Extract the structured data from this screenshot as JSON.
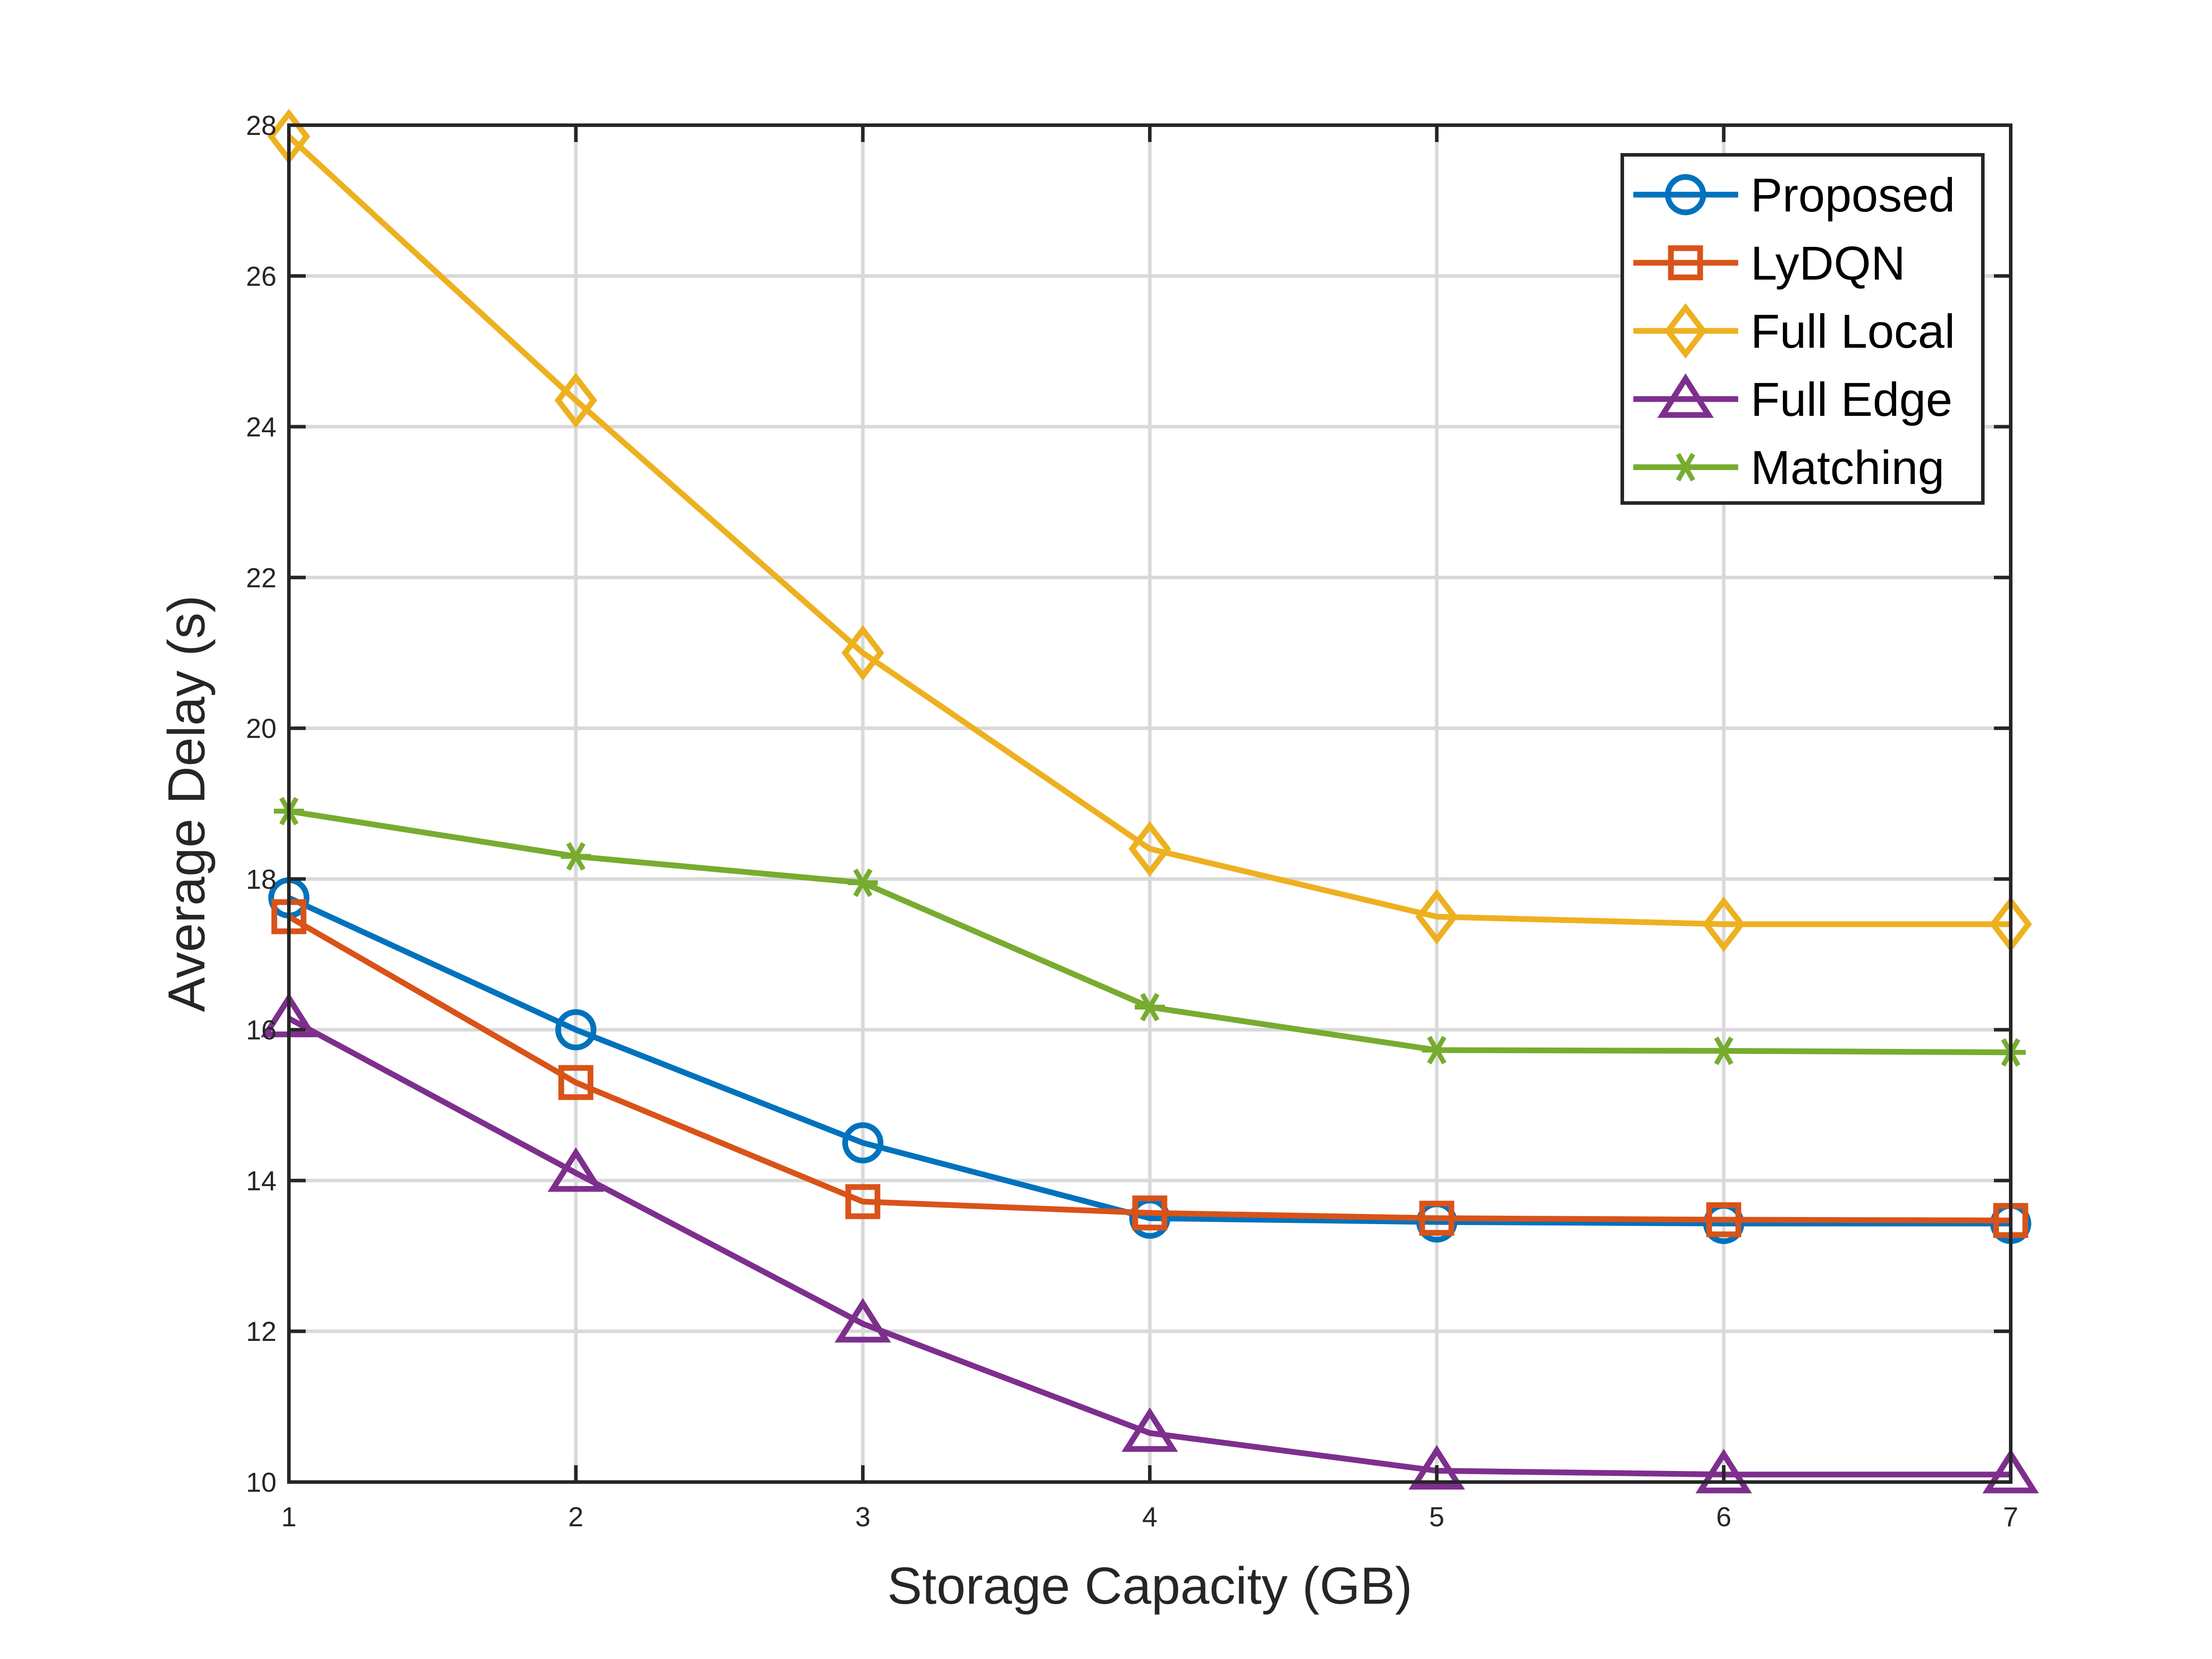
{
  "chart_data": {
    "type": "line",
    "title": "",
    "xlabel": "Storage Capacity (GB)",
    "ylabel": "Average Delay (s)",
    "xlim": [
      1,
      7
    ],
    "ylim": [
      10,
      28
    ],
    "grid": true,
    "legend_position": "top-right",
    "x": [
      1,
      2,
      3,
      4,
      5,
      6,
      7
    ],
    "x_ticks": [
      "1",
      "2",
      "3",
      "4",
      "5",
      "6",
      "7"
    ],
    "y_ticks": [
      "10",
      "12",
      "14",
      "16",
      "18",
      "20",
      "22",
      "24",
      "26",
      "28"
    ],
    "series": [
      {
        "name": "Proposed",
        "color": "#0072BD",
        "marker": "circle",
        "values": [
          17.75,
          16.0,
          14.5,
          13.5,
          13.45,
          13.43,
          13.43
        ]
      },
      {
        "name": "LyDQN",
        "color": "#D95319",
        "marker": "square",
        "values": [
          17.5,
          15.3,
          13.72,
          13.57,
          13.5,
          13.48,
          13.47
        ]
      },
      {
        "name": "Full Local",
        "color": "#EDB120",
        "marker": "diamond",
        "values": [
          27.85,
          24.35,
          21.0,
          18.4,
          17.5,
          17.4,
          17.4
        ]
      },
      {
        "name": "Full Edge",
        "color": "#7E2F8E",
        "marker": "triangle",
        "values": [
          16.15,
          14.1,
          12.1,
          10.65,
          10.15,
          10.1,
          10.1
        ]
      },
      {
        "name": "Matching",
        "color": "#77AC30",
        "marker": "asterisk",
        "values": [
          18.9,
          18.3,
          17.95,
          16.3,
          15.73,
          15.72,
          15.7
        ]
      }
    ]
  }
}
